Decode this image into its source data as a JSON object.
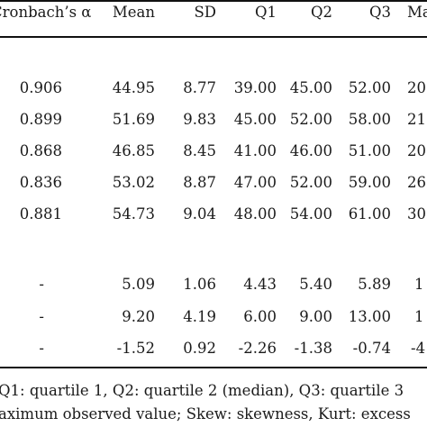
{
  "table": {
    "headers": [
      "Cronbach’s α",
      "Mean",
      "SD",
      "Q1",
      "Q2",
      "Q3",
      "Max"
    ],
    "group1": [
      [
        "0.906",
        "44.95",
        "8.77",
        "39.00",
        "45.00",
        "52.00",
        "20"
      ],
      [
        "0.899",
        "51.69",
        "9.83",
        "45.00",
        "52.00",
        "58.00",
        "21"
      ],
      [
        "0.868",
        "46.85",
        "8.45",
        "41.00",
        "46.00",
        "51.00",
        "20"
      ],
      [
        "0.836",
        "53.02",
        "8.87",
        "47.00",
        "52.00",
        "59.00",
        "26"
      ],
      [
        "0.881",
        "54.73",
        "9.04",
        "48.00",
        "54.00",
        "61.00",
        "30"
      ]
    ],
    "group2": [
      [
        "-",
        "5.09",
        "1.06",
        "4.43",
        "5.40",
        "5.89",
        "1"
      ],
      [
        "-",
        "9.20",
        "4.19",
        "6.00",
        "9.00",
        "13.00",
        "1"
      ],
      [
        "-",
        "-1.52",
        "0.92",
        "-2.26",
        "-1.38",
        "-0.74",
        "-4"
      ]
    ],
    "notes": [
      "Q1: quartile 1, Q2: quartile 2 (median), Q3: quartile 3",
      "aximum observed value; Skew: skewness, Kurt: excess"
    ]
  }
}
